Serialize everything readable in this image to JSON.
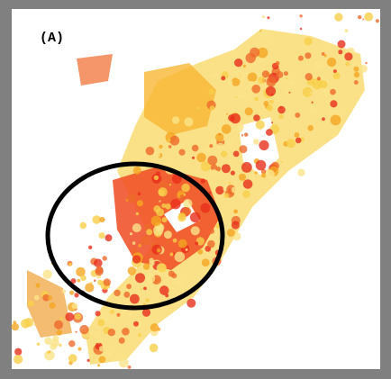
{
  "panel_label": "(A)"
}
